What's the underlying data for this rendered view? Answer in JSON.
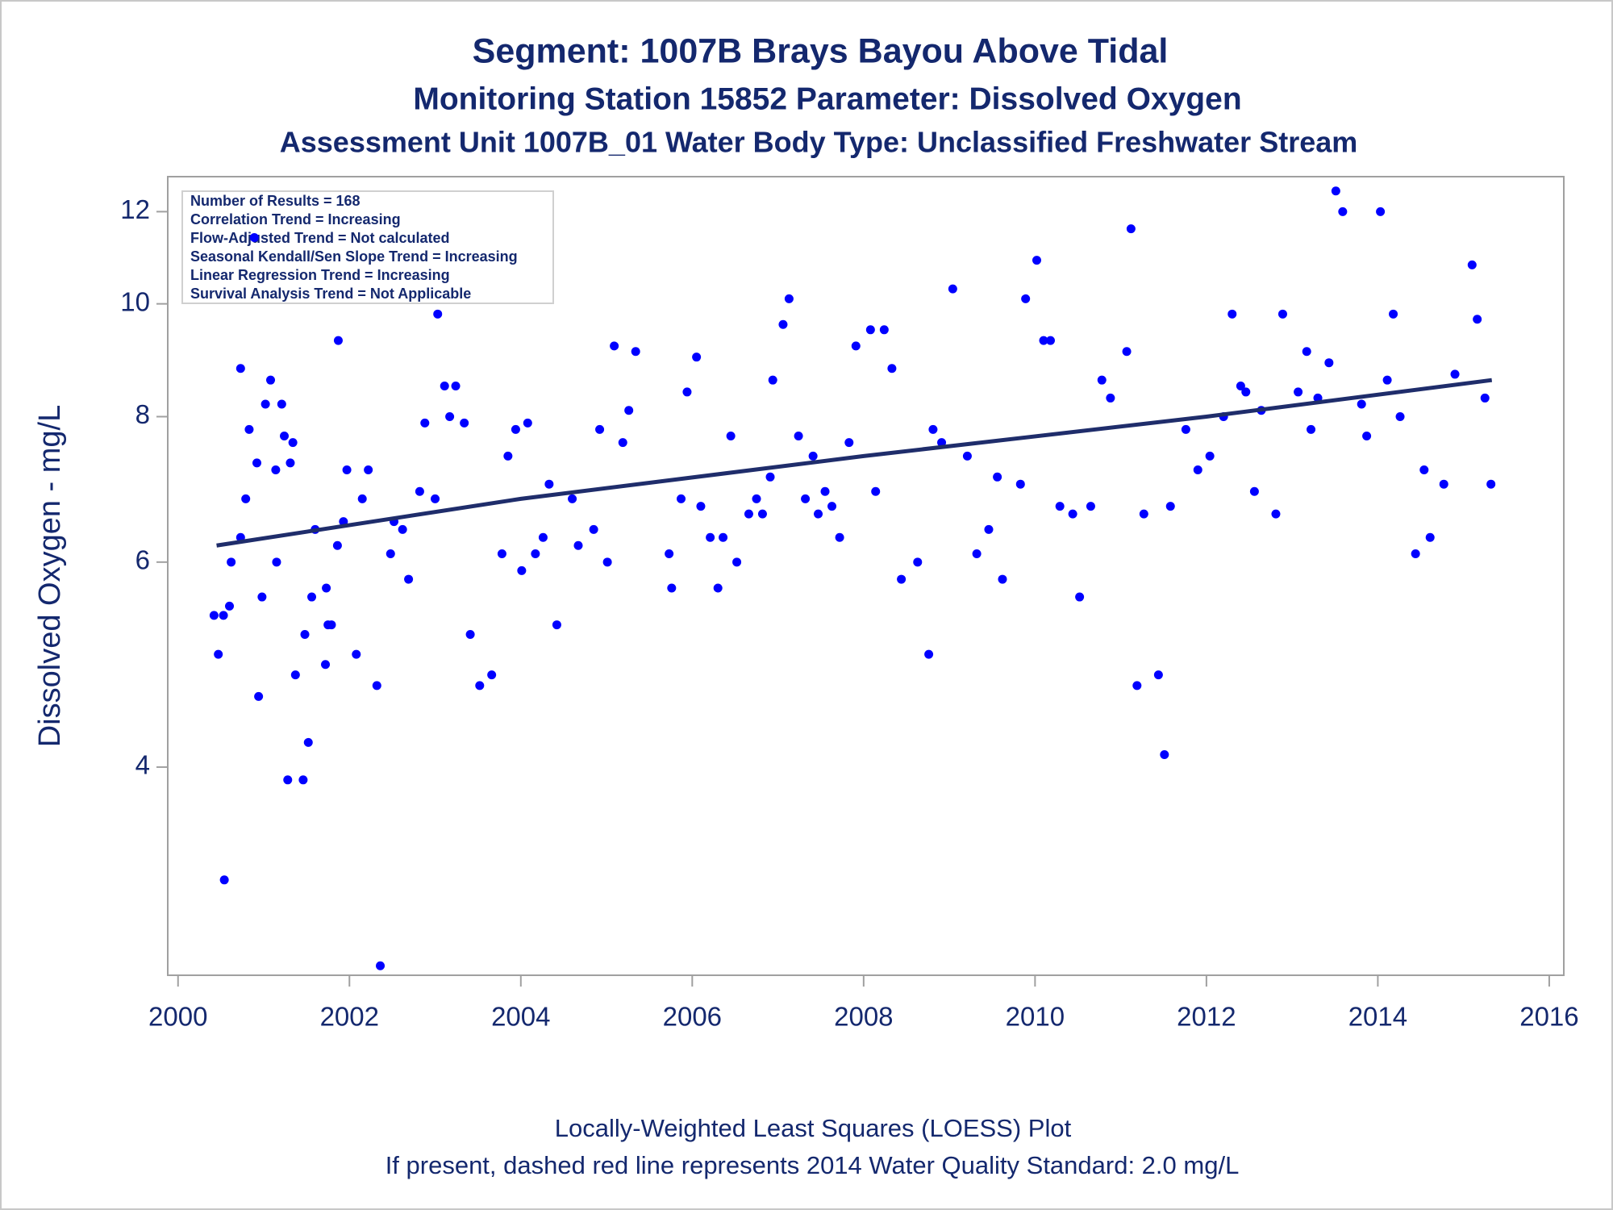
{
  "chart_data": {
    "type": "scatter",
    "title": "Segment: 1007B  Brays Bayou Above Tidal",
    "subtitles": [
      "Monitoring Station 15852 Parameter: Dissolved Oxygen",
      "Assessment Unit 1007B_01   Water Body Type: Unclassified Freshwater Stream"
    ],
    "annotations": [
      "Number of Results = 168",
      "Correlation Trend = Increasing",
      "Flow-Adjusted Trend = Not calculated",
      "Seasonal Kendall/Sen Slope Trend = Increasing",
      "Linear Regression Trend = Increasing",
      "Survival Analysis Trend = Not Applicable"
    ],
    "ylabel": "Dissolved Oxygen - mg/L",
    "footnotes": [
      "Locally-Weighted Least Squares (LOESS) Plot",
      "If present, dashed red line represents 2014 Water Quality Standard: 2.0 mg/L"
    ],
    "xlim": [
      1999.88,
      2016.17
    ],
    "xticks": [
      2000,
      2002,
      2004,
      2006,
      2008,
      2010,
      2012,
      2014,
      2016
    ],
    "ylim": [
      2.65,
      12.86
    ],
    "yticks": [
      4,
      6,
      8,
      10,
      12
    ],
    "yscale": "log",
    "text_color": "#14286e",
    "series": [
      {
        "style": "markers",
        "color": "#0000ff",
        "x": [
          2000.42,
          2000.47,
          2000.53,
          2000.54,
          2000.6,
          2000.62,
          2000.73,
          2000.73,
          2000.79,
          2000.83,
          2000.89,
          2000.92,
          2000.94,
          2000.98,
          2001.02,
          2001.08,
          2001.14,
          2001.15,
          2001.21,
          2001.24,
          2001.28,
          2001.31,
          2001.34,
          2001.37,
          2001.46,
          2001.48,
          2001.52,
          2001.56,
          2001.6,
          2001.72,
          2001.73,
          2001.75,
          2001.79,
          2001.86,
          2001.87,
          2001.93,
          2001.97,
          2002.08,
          2002.15,
          2002.22,
          2002.32,
          2002.36,
          2002.48,
          2002.52,
          2002.62,
          2002.69,
          2002.82,
          2002.88,
          2003.0,
          2003.03,
          2003.11,
          2003.17,
          2003.24,
          2003.34,
          2003.41,
          2003.52,
          2003.66,
          2003.78,
          2003.85,
          2003.94,
          2004.01,
          2004.08,
          2004.17,
          2004.26,
          2004.33,
          2004.42,
          2004.6,
          2004.67,
          2004.85,
          2004.92,
          2005.01,
          2005.09,
          2005.19,
          2005.26,
          2005.34,
          2005.73,
          2005.76,
          2005.87,
          2005.94,
          2006.05,
          2006.1,
          2006.21,
          2006.3,
          2006.36,
          2006.45,
          2006.52,
          2006.66,
          2006.75,
          2006.82,
          2006.91,
          2006.94,
          2007.06,
          2007.13,
          2007.24,
          2007.32,
          2007.41,
          2007.47,
          2007.55,
          2007.63,
          2007.72,
          2007.83,
          2007.91,
          2008.08,
          2008.14,
          2008.24,
          2008.33,
          2008.44,
          2008.63,
          2008.76,
          2008.81,
          2008.91,
          2009.04,
          2009.21,
          2009.32,
          2009.46,
          2009.56,
          2009.62,
          2009.83,
          2009.89,
          2010.02,
          2010.1,
          2010.18,
          2010.29,
          2010.44,
          2010.52,
          2010.65,
          2010.78,
          2010.88,
          2011.07,
          2011.12,
          2011.19,
          2011.27,
          2011.44,
          2011.51,
          2011.58,
          2011.76,
          2011.9,
          2012.04,
          2012.2,
          2012.3,
          2012.4,
          2012.46,
          2012.56,
          2012.64,
          2012.81,
          2012.89,
          2013.07,
          2013.17,
          2013.22,
          2013.3,
          2013.43,
          2013.51,
          2013.59,
          2013.81,
          2013.87,
          2014.03,
          2014.11,
          2014.18,
          2014.26,
          2014.44,
          2014.54,
          2014.61,
          2014.77,
          2014.9,
          2015.1,
          2015.16,
          2015.25,
          2015.32
        ],
        "values": [
          5.4,
          5.0,
          5.4,
          3.2,
          5.5,
          6.0,
          8.8,
          6.3,
          6.8,
          7.8,
          11.4,
          7.3,
          4.6,
          5.6,
          8.2,
          8.6,
          7.2,
          6.0,
          8.2,
          7.7,
          3.9,
          7.3,
          7.6,
          4.8,
          3.9,
          5.2,
          4.2,
          5.6,
          6.4,
          4.9,
          5.7,
          5.3,
          5.3,
          6.2,
          9.3,
          6.5,
          7.2,
          5.0,
          6.8,
          7.2,
          4.7,
          2.7,
          6.1,
          6.5,
          6.4,
          5.8,
          6.9,
          7.9,
          6.8,
          9.8,
          8.5,
          8.0,
          8.5,
          7.9,
          5.2,
          4.7,
          4.8,
          6.1,
          7.4,
          7.8,
          5.9,
          7.9,
          6.1,
          6.3,
          7.0,
          5.3,
          6.8,
          6.2,
          6.4,
          7.8,
          6.0,
          9.2,
          7.6,
          8.1,
          9.1,
          6.1,
          5.7,
          6.8,
          8.4,
          9.0,
          6.7,
          6.3,
          5.7,
          6.3,
          7.7,
          6.0,
          6.6,
          6.8,
          6.6,
          7.1,
          8.6,
          9.6,
          10.1,
          7.7,
          6.8,
          7.4,
          6.6,
          6.9,
          6.7,
          6.3,
          7.6,
          9.2,
          9.5,
          6.9,
          9.5,
          8.8,
          5.8,
          6.0,
          5.0,
          7.8,
          7.6,
          10.3,
          7.4,
          6.1,
          6.4,
          7.1,
          5.8,
          7.0,
          10.1,
          10.9,
          9.3,
          9.3,
          6.7,
          6.6,
          5.6,
          6.7,
          8.6,
          8.3,
          9.1,
          11.6,
          4.7,
          6.6,
          4.8,
          4.1,
          6.7,
          7.8,
          7.2,
          7.4,
          8.0,
          9.8,
          8.5,
          8.4,
          6.9,
          8.1,
          6.6,
          9.8,
          8.4,
          9.1,
          7.8,
          8.3,
          8.9,
          12.5,
          12.0,
          8.2,
          7.7,
          12.0,
          8.6,
          9.8,
          8.0,
          6.1,
          7.2,
          6.3,
          7.0,
          8.7,
          10.8,
          9.7,
          8.3,
          7.0
        ]
      },
      {
        "style": "line",
        "color": "#1f2d6b",
        "x": [
          2000.45,
          2004,
          2008,
          2012,
          2015.33
        ],
        "values": [
          6.2,
          6.8,
          7.4,
          8.0,
          8.6
        ]
      }
    ]
  }
}
